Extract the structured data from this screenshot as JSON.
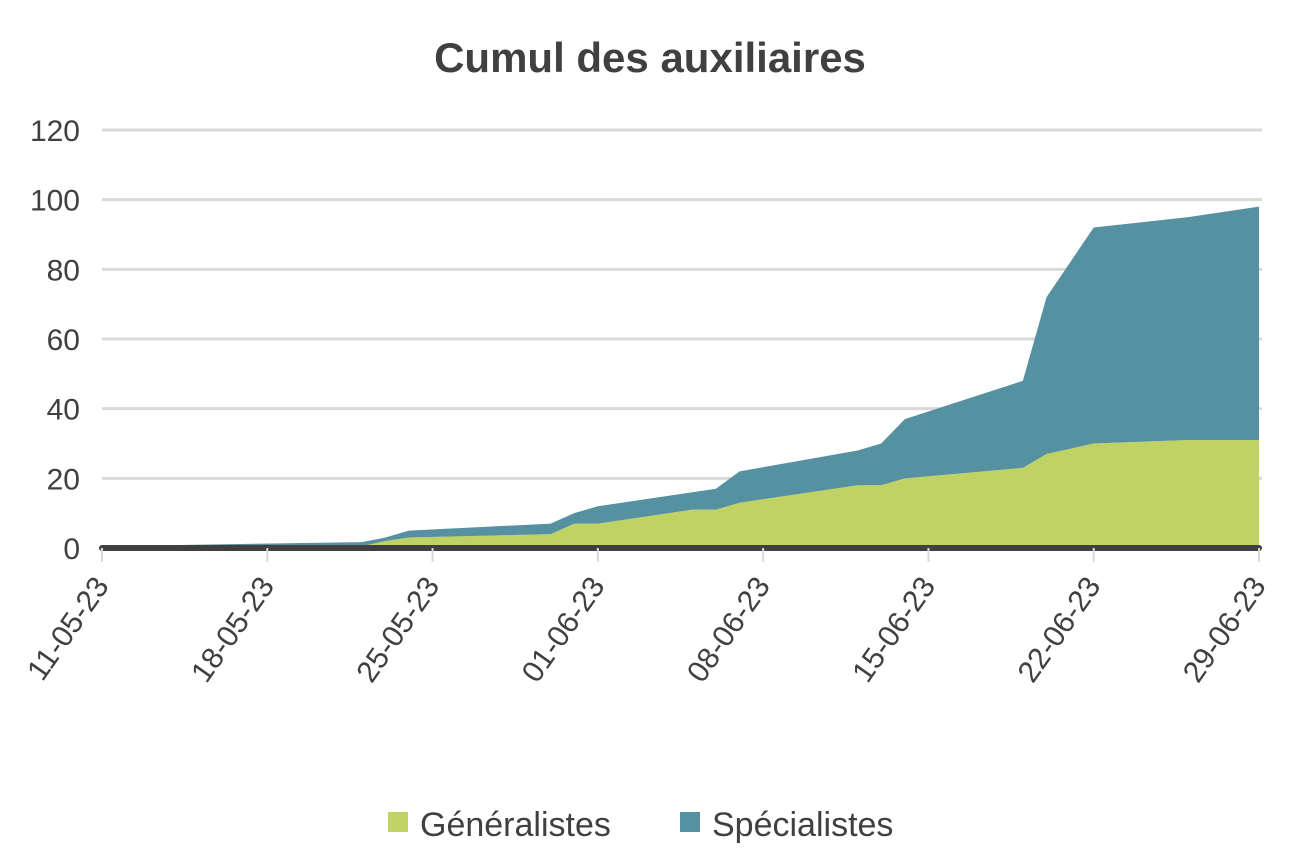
{
  "chart_data": {
    "type": "area",
    "stacked": true,
    "title": "Cumul des auxiliaires",
    "xlabel": "",
    "ylabel": "",
    "ylim": [
      0,
      120
    ],
    "yticks": [
      0,
      20,
      40,
      60,
      80,
      100,
      120
    ],
    "x_start": "11-05-23",
    "x_end": "29-06-23",
    "xticks": [
      "11-05-23",
      "18-05-23",
      "25-05-23",
      "01-06-23",
      "08-06-23",
      "15-06-23",
      "22-06-23",
      "29-06-23"
    ],
    "grid": true,
    "legend_position": "bottom",
    "x": [
      "11-05-23",
      "22-05-23",
      "23-05-23",
      "24-05-23",
      "30-05-23",
      "31-05-23",
      "01-06-23",
      "05-06-23",
      "06-06-23",
      "07-06-23",
      "12-06-23",
      "13-06-23",
      "14-06-23",
      "19-06-23",
      "20-06-23",
      "22-06-23",
      "26-06-23",
      "29-06-23"
    ],
    "series": [
      {
        "name": "Généralistes",
        "color": "#c0d264",
        "values": [
          0,
          0.5,
          2,
          3,
          4,
          7,
          7,
          11,
          11,
          13,
          18,
          18,
          20,
          23,
          27,
          30,
          31,
          31
        ]
      },
      {
        "name": "Spécialistes",
        "color": "#5591a0",
        "values": [
          0.5,
          1.2,
          1,
          2,
          3,
          3,
          5,
          5,
          6,
          9,
          10,
          12,
          17,
          25,
          45,
          62,
          64,
          67
        ]
      }
    ]
  }
}
